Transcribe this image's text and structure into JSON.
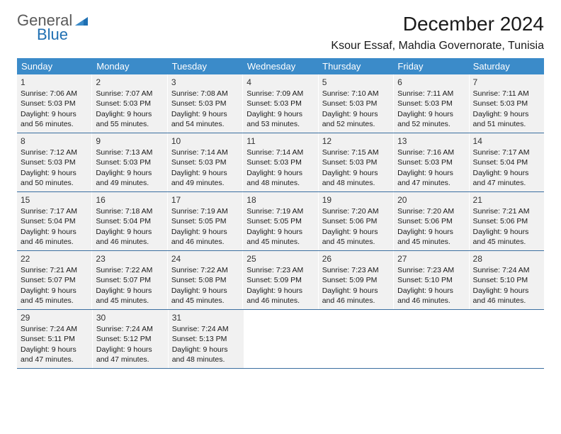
{
  "logo": {
    "general": "General",
    "blue": "Blue"
  },
  "title": "December 2024",
  "location": "Ksour Essaf, Mahdia Governorate, Tunisia",
  "colors": {
    "header_bg": "#3b8bc9",
    "header_text": "#ffffff",
    "row_border": "#3b6fa0",
    "cell_bg": "#f1f1f1",
    "logo_gray": "#5a5a5a",
    "logo_blue": "#1f6fb2"
  },
  "day_headers": [
    "Sunday",
    "Monday",
    "Tuesday",
    "Wednesday",
    "Thursday",
    "Friday",
    "Saturday"
  ],
  "weeks": [
    [
      {
        "n": "1",
        "sr": "7:06 AM",
        "ss": "5:03 PM",
        "dl": "9 hours and 56 minutes."
      },
      {
        "n": "2",
        "sr": "7:07 AM",
        "ss": "5:03 PM",
        "dl": "9 hours and 55 minutes."
      },
      {
        "n": "3",
        "sr": "7:08 AM",
        "ss": "5:03 PM",
        "dl": "9 hours and 54 minutes."
      },
      {
        "n": "4",
        "sr": "7:09 AM",
        "ss": "5:03 PM",
        "dl": "9 hours and 53 minutes."
      },
      {
        "n": "5",
        "sr": "7:10 AM",
        "ss": "5:03 PM",
        "dl": "9 hours and 52 minutes."
      },
      {
        "n": "6",
        "sr": "7:11 AM",
        "ss": "5:03 PM",
        "dl": "9 hours and 52 minutes."
      },
      {
        "n": "7",
        "sr": "7:11 AM",
        "ss": "5:03 PM",
        "dl": "9 hours and 51 minutes."
      }
    ],
    [
      {
        "n": "8",
        "sr": "7:12 AM",
        "ss": "5:03 PM",
        "dl": "9 hours and 50 minutes."
      },
      {
        "n": "9",
        "sr": "7:13 AM",
        "ss": "5:03 PM",
        "dl": "9 hours and 49 minutes."
      },
      {
        "n": "10",
        "sr": "7:14 AM",
        "ss": "5:03 PM",
        "dl": "9 hours and 49 minutes."
      },
      {
        "n": "11",
        "sr": "7:14 AM",
        "ss": "5:03 PM",
        "dl": "9 hours and 48 minutes."
      },
      {
        "n": "12",
        "sr": "7:15 AM",
        "ss": "5:03 PM",
        "dl": "9 hours and 48 minutes."
      },
      {
        "n": "13",
        "sr": "7:16 AM",
        "ss": "5:03 PM",
        "dl": "9 hours and 47 minutes."
      },
      {
        "n": "14",
        "sr": "7:17 AM",
        "ss": "5:04 PM",
        "dl": "9 hours and 47 minutes."
      }
    ],
    [
      {
        "n": "15",
        "sr": "7:17 AM",
        "ss": "5:04 PM",
        "dl": "9 hours and 46 minutes."
      },
      {
        "n": "16",
        "sr": "7:18 AM",
        "ss": "5:04 PM",
        "dl": "9 hours and 46 minutes."
      },
      {
        "n": "17",
        "sr": "7:19 AM",
        "ss": "5:05 PM",
        "dl": "9 hours and 46 minutes."
      },
      {
        "n": "18",
        "sr": "7:19 AM",
        "ss": "5:05 PM",
        "dl": "9 hours and 45 minutes."
      },
      {
        "n": "19",
        "sr": "7:20 AM",
        "ss": "5:06 PM",
        "dl": "9 hours and 45 minutes."
      },
      {
        "n": "20",
        "sr": "7:20 AM",
        "ss": "5:06 PM",
        "dl": "9 hours and 45 minutes."
      },
      {
        "n": "21",
        "sr": "7:21 AM",
        "ss": "5:06 PM",
        "dl": "9 hours and 45 minutes."
      }
    ],
    [
      {
        "n": "22",
        "sr": "7:21 AM",
        "ss": "5:07 PM",
        "dl": "9 hours and 45 minutes."
      },
      {
        "n": "23",
        "sr": "7:22 AM",
        "ss": "5:07 PM",
        "dl": "9 hours and 45 minutes."
      },
      {
        "n": "24",
        "sr": "7:22 AM",
        "ss": "5:08 PM",
        "dl": "9 hours and 45 minutes."
      },
      {
        "n": "25",
        "sr": "7:23 AM",
        "ss": "5:09 PM",
        "dl": "9 hours and 46 minutes."
      },
      {
        "n": "26",
        "sr": "7:23 AM",
        "ss": "5:09 PM",
        "dl": "9 hours and 46 minutes."
      },
      {
        "n": "27",
        "sr": "7:23 AM",
        "ss": "5:10 PM",
        "dl": "9 hours and 46 minutes."
      },
      {
        "n": "28",
        "sr": "7:24 AM",
        "ss": "5:10 PM",
        "dl": "9 hours and 46 minutes."
      }
    ],
    [
      {
        "n": "29",
        "sr": "7:24 AM",
        "ss": "5:11 PM",
        "dl": "9 hours and 47 minutes."
      },
      {
        "n": "30",
        "sr": "7:24 AM",
        "ss": "5:12 PM",
        "dl": "9 hours and 47 minutes."
      },
      {
        "n": "31",
        "sr": "7:24 AM",
        "ss": "5:13 PM",
        "dl": "9 hours and 48 minutes."
      },
      null,
      null,
      null,
      null
    ]
  ],
  "labels": {
    "sunrise": "Sunrise:",
    "sunset": "Sunset:",
    "daylight": "Daylight:"
  }
}
